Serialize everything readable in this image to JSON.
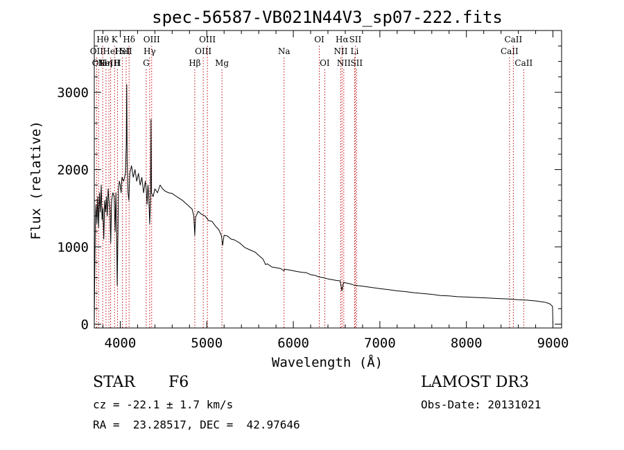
{
  "chart_data": {
    "type": "line",
    "title": "spec-56587-VB021N44V3_sp07-222.fits",
    "xlabel": "Wavelength (Å)",
    "ylabel": "Flux (relative)",
    "xlim": [
      3700,
      9100
    ],
    "ylim": [
      -50,
      3800
    ],
    "x_ticks": [
      4000,
      5000,
      6000,
      7000,
      8000,
      9000
    ],
    "y_ticks": [
      0,
      1000,
      2000,
      3000
    ],
    "x_tick_labels": [
      "4000",
      "5000",
      "6000",
      "7000",
      "8000",
      "9000"
    ],
    "y_tick_labels": [
      "0",
      "1000",
      "2000",
      "3000"
    ],
    "series": [
      {
        "name": "spectrum",
        "points": [
          [
            3700,
            0
          ],
          [
            3705,
            600
          ],
          [
            3712,
            1350
          ],
          [
            3720,
            1550
          ],
          [
            3730,
            1300
          ],
          [
            3740,
            1650
          ],
          [
            3750,
            1250
          ],
          [
            3760,
            1700
          ],
          [
            3770,
            1450
          ],
          [
            3780,
            1800
          ],
          [
            3790,
            1350
          ],
          [
            3800,
            1500
          ],
          [
            3810,
            1100
          ],
          [
            3820,
            1600
          ],
          [
            3830,
            1450
          ],
          [
            3840,
            1650
          ],
          [
            3850,
            1400
          ],
          [
            3860,
            1750
          ],
          [
            3870,
            1600
          ],
          [
            3880,
            1500
          ],
          [
            3890,
            1050
          ],
          [
            3900,
            1600
          ],
          [
            3915,
            1700
          ],
          [
            3930,
            1650
          ],
          [
            3940,
            1200
          ],
          [
            3950,
            1700
          ],
          [
            3960,
            1000
          ],
          [
            3965,
            500
          ],
          [
            3970,
            900
          ],
          [
            3980,
            1750
          ],
          [
            3990,
            1850
          ],
          [
            4000,
            1800
          ],
          [
            4010,
            1700
          ],
          [
            4020,
            1900
          ],
          [
            4040,
            1850
          ],
          [
            4060,
            1950
          ],
          [
            4070,
            2350
          ],
          [
            4075,
            3100
          ],
          [
            4080,
            2100
          ],
          [
            4090,
            1700
          ],
          [
            4100,
            1600
          ],
          [
            4110,
            1950
          ],
          [
            4130,
            2050
          ],
          [
            4150,
            1900
          ],
          [
            4170,
            2000
          ],
          [
            4190,
            1850
          ],
          [
            4210,
            1950
          ],
          [
            4230,
            1800
          ],
          [
            4250,
            1900
          ],
          [
            4270,
            1700
          ],
          [
            4290,
            1850
          ],
          [
            4300,
            1750
          ],
          [
            4310,
            1550
          ],
          [
            4320,
            1800
          ],
          [
            4330,
            1650
          ],
          [
            4340,
            1300
          ],
          [
            4350,
            1600
          ],
          [
            4355,
            2650
          ],
          [
            4360,
            1700
          ],
          [
            4380,
            1650
          ],
          [
            4400,
            1750
          ],
          [
            4430,
            1700
          ],
          [
            4460,
            1800
          ],
          [
            4490,
            1750
          ],
          [
            4520,
            1720
          ],
          [
            4560,
            1700
          ],
          [
            4600,
            1690
          ],
          [
            4640,
            1660
          ],
          [
            4680,
            1630
          ],
          [
            4720,
            1600
          ],
          [
            4760,
            1560
          ],
          [
            4800,
            1520
          ],
          [
            4830,
            1490
          ],
          [
            4850,
            1400
          ],
          [
            4861,
            1150
          ],
          [
            4870,
            1380
          ],
          [
            4900,
            1460
          ],
          [
            4940,
            1420
          ],
          [
            4980,
            1400
          ],
          [
            5020,
            1340
          ],
          [
            5060,
            1330
          ],
          [
            5100,
            1270
          ],
          [
            5140,
            1220
          ],
          [
            5170,
            1140
          ],
          [
            5183,
            1020
          ],
          [
            5200,
            1150
          ],
          [
            5240,
            1140
          ],
          [
            5280,
            1100
          ],
          [
            5320,
            1090
          ],
          [
            5380,
            1050
          ],
          [
            5440,
            990
          ],
          [
            5500,
            960
          ],
          [
            5560,
            930
          ],
          [
            5600,
            890
          ],
          [
            5650,
            840
          ],
          [
            5680,
            770
          ],
          [
            5700,
            780
          ],
          [
            5750,
            740
          ],
          [
            5800,
            730
          ],
          [
            5850,
            720
          ],
          [
            5893,
            690
          ],
          [
            5900,
            710
          ],
          [
            5950,
            700
          ],
          [
            6000,
            690
          ],
          [
            6050,
            680
          ],
          [
            6100,
            670
          ],
          [
            6150,
            665
          ],
          [
            6200,
            640
          ],
          [
            6250,
            630
          ],
          [
            6300,
            610
          ],
          [
            6350,
            600
          ],
          [
            6400,
            585
          ],
          [
            6450,
            575
          ],
          [
            6500,
            565
          ],
          [
            6540,
            560
          ],
          [
            6563,
            430
          ],
          [
            6580,
            540
          ],
          [
            6620,
            530
          ],
          [
            6660,
            520
          ],
          [
            6700,
            505
          ],
          [
            6800,
            490
          ],
          [
            6900,
            475
          ],
          [
            7000,
            460
          ],
          [
            7100,
            445
          ],
          [
            7200,
            430
          ],
          [
            7300,
            420
          ],
          [
            7400,
            405
          ],
          [
            7500,
            395
          ],
          [
            7600,
            385
          ],
          [
            7700,
            370
          ],
          [
            7800,
            365
          ],
          [
            7900,
            355
          ],
          [
            8000,
            350
          ],
          [
            8100,
            345
          ],
          [
            8200,
            340
          ],
          [
            8300,
            335
          ],
          [
            8400,
            330
          ],
          [
            8500,
            325
          ],
          [
            8600,
            315
          ],
          [
            8700,
            310
          ],
          [
            8800,
            300
          ],
          [
            8900,
            285
          ],
          [
            8960,
            265
          ],
          [
            8995,
            230
          ],
          [
            9000,
            0
          ]
        ]
      }
    ],
    "line_markers": [
      {
        "wavelength": 3727,
        "label": "OII",
        "row": 2
      },
      {
        "wavelength": 3750,
        "label": "OII",
        "row": 3
      },
      {
        "wavelength": 3797,
        "label": "Hθ",
        "row": 1
      },
      {
        "wavelength": 3835,
        "label": "Hη",
        "row": 3
      },
      {
        "wavelength": 3869,
        "label": "NeIII",
        "row": 3
      },
      {
        "wavelength": 3889,
        "label": "HeI",
        "row": 2
      },
      {
        "wavelength": 3934,
        "label": "K",
        "row": 1
      },
      {
        "wavelength": 3968,
        "label": "H",
        "row": 3
      },
      {
        "wavelength": 4026,
        "label": "HeI",
        "row": 2
      },
      {
        "wavelength": 4068,
        "label": "SII",
        "row": 2
      },
      {
        "wavelength": 4102,
        "label": "Hδ",
        "row": 1
      },
      {
        "wavelength": 4300,
        "label": "G",
        "row": 3
      },
      {
        "wavelength": 4340,
        "label": "Hγ",
        "row": 2
      },
      {
        "wavelength": 4363,
        "label": "OIII",
        "row": 1
      },
      {
        "wavelength": 4861,
        "label": "Hβ",
        "row": 3
      },
      {
        "wavelength": 4959,
        "label": "OIII",
        "row": 2
      },
      {
        "wavelength": 5007,
        "label": "OIII",
        "row": 1
      },
      {
        "wavelength": 5175,
        "label": "Mg",
        "row": 3
      },
      {
        "wavelength": 5893,
        "label": "Na",
        "row": 2
      },
      {
        "wavelength": 6300,
        "label": "OI",
        "row": 1
      },
      {
        "wavelength": 6363,
        "label": "OI",
        "row": 3
      },
      {
        "wavelength": 6548,
        "label": "NII",
        "row": 2
      },
      {
        "wavelength": 6563,
        "label": "Hα",
        "row": 1
      },
      {
        "wavelength": 6583,
        "label": "NII",
        "row": 3
      },
      {
        "wavelength": 6708,
        "label": "Li",
        "row": 2
      },
      {
        "wavelength": 6716,
        "label": "SII",
        "row": 1
      },
      {
        "wavelength": 6731,
        "label": "SII",
        "row": 3
      },
      {
        "wavelength": 8498,
        "label": "CaII",
        "row": 2
      },
      {
        "wavelength": 8542,
        "label": "CaII",
        "row": 1
      },
      {
        "wavelength": 8662,
        "label": "CaII",
        "row": 3
      }
    ]
  },
  "info": {
    "class": "STAR",
    "subclass": "F6",
    "survey": "LAMOST DR3",
    "cz": "cz = -22.1 ± 1.7 km/s",
    "obs_date": "Obs-Date: 20131021",
    "radec": "RA =  23.28517, DEC =  42.97646"
  },
  "colors": {
    "marker": "#c00000",
    "spectrum": "#000000",
    "axes": "#000000"
  }
}
